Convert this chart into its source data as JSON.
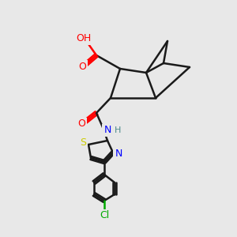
{
  "bg_color": "#e8e8e8",
  "bond_color": "#1a1a1a",
  "bond_width": 1.8,
  "atom_colors": {
    "O": "#ff0000",
    "N": "#0000ff",
    "S": "#cccc00",
    "Cl": "#00aa00",
    "H": "#4a8a8a",
    "C": "#1a1a1a"
  },
  "figsize": [
    3.0,
    3.0
  ],
  "dpi": 100
}
